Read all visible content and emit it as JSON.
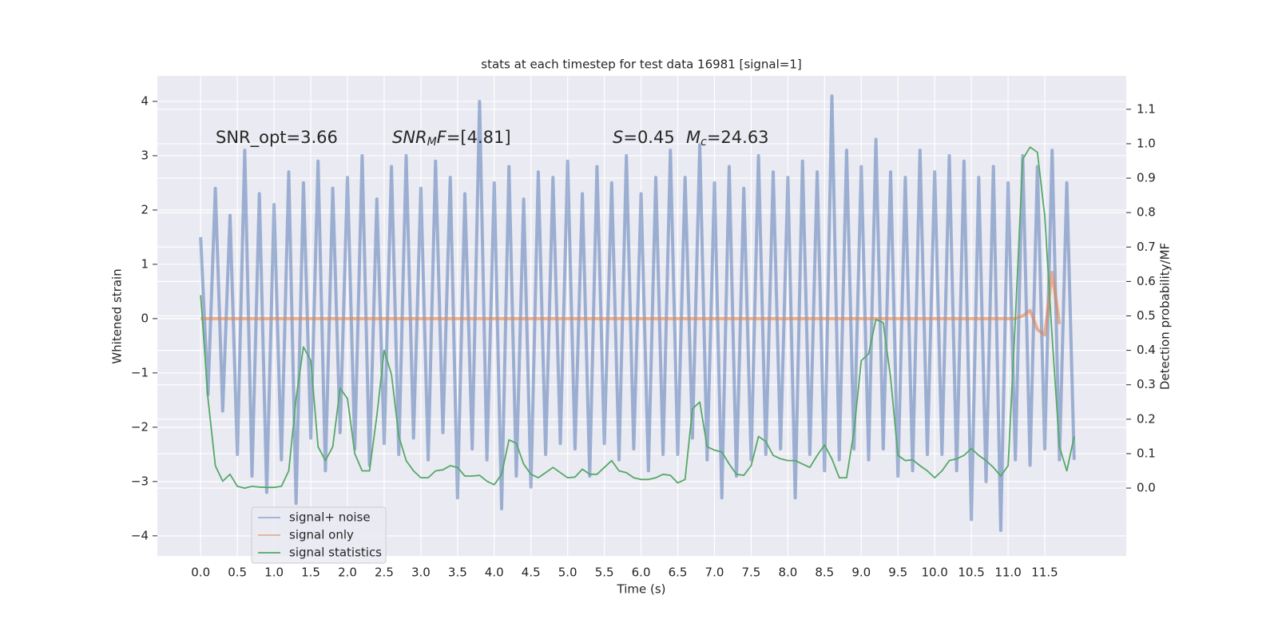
{
  "chart_data": {
    "type": "line",
    "title": "stats at each timestep for test data 16981 [signal=1]",
    "xlabel": "Time (s)",
    "ylabel": "Whitened strain",
    "y2label": "Detection probability/MF",
    "annotations": [
      [
        {
          "text": "SNR_opt=3.66",
          "italic": false,
          "sub": false
        }
      ],
      [
        {
          "text": "SNR",
          "italic": true,
          "sub": false
        },
        {
          "text": "M",
          "italic": true,
          "sub": true
        },
        {
          "text": "F",
          "italic": true,
          "sub": false
        },
        {
          "text": "=[4.81]",
          "italic": false,
          "sub": false
        }
      ],
      [
        {
          "text": "S",
          "italic": true,
          "sub": false
        },
        {
          "text": "=0.45",
          "italic": false,
          "sub": false
        }
      ],
      [
        {
          "text": "M",
          "italic": true,
          "sub": false
        },
        {
          "text": "c",
          "italic": true,
          "sub": true
        },
        {
          "text": "=24.63",
          "italic": false,
          "sub": false
        }
      ]
    ],
    "x": [
      0.0,
      0.1,
      0.2,
      0.3,
      0.4,
      0.5,
      0.6,
      0.7,
      0.8,
      0.9,
      1.0,
      1.1,
      1.2,
      1.3,
      1.4,
      1.5,
      1.6,
      1.7,
      1.8,
      1.9,
      2.0,
      2.1,
      2.2,
      2.3,
      2.4,
      2.5,
      2.6,
      2.7,
      2.8,
      2.9,
      3.0,
      3.1,
      3.2,
      3.3,
      3.4,
      3.5,
      3.6,
      3.7,
      3.8,
      3.9,
      4.0,
      4.1,
      4.2,
      4.3,
      4.4,
      4.5,
      4.6,
      4.7,
      4.8,
      4.9,
      5.0,
      5.1,
      5.2,
      5.3,
      5.4,
      5.5,
      5.6,
      5.7,
      5.8,
      5.9,
      6.0,
      6.1,
      6.2,
      6.3,
      6.4,
      6.5,
      6.6,
      6.7,
      6.8,
      6.9,
      7.0,
      7.1,
      7.2,
      7.3,
      7.4,
      7.5,
      7.6,
      7.7,
      7.8,
      7.9,
      8.0,
      8.1,
      8.2,
      8.3,
      8.4,
      8.5,
      8.6,
      8.7,
      8.8,
      8.9,
      9.0,
      9.1,
      9.2,
      9.3,
      9.4,
      9.5,
      9.6,
      9.7,
      9.8,
      9.9,
      10.0,
      10.1,
      10.2,
      10.3,
      10.4,
      10.5,
      10.6,
      10.7,
      10.8,
      10.9,
      11.0,
      11.1,
      11.2,
      11.3,
      11.4,
      11.5,
      11.6,
      11.7,
      11.8,
      11.9
    ],
    "series": [
      {
        "name": "signal+ noise",
        "color": "#4c72b0",
        "opacity": 0.5,
        "axis": "y",
        "values": [
          1.5,
          -1.4,
          2.4,
          -1.7,
          1.9,
          -2.5,
          3.1,
          -2.9,
          2.3,
          -3.2,
          2.1,
          -2.6,
          2.7,
          -3.4,
          2.5,
          -2.2,
          2.9,
          -2.8,
          2.4,
          -2.1,
          2.6,
          -2.4,
          3.0,
          -2.7,
          2.2,
          -2.3,
          2.8,
          -2.5,
          3.0,
          -2.2,
          2.4,
          -2.6,
          2.9,
          -2.1,
          2.6,
          -3.3,
          2.3,
          -2.4,
          4.0,
          -2.6,
          2.5,
          -3.5,
          2.8,
          -2.9,
          2.2,
          -3.1,
          2.7,
          -2.5,
          2.6,
          -2.3,
          2.9,
          -2.4,
          2.3,
          -2.9,
          2.8,
          -2.3,
          2.5,
          -2.6,
          3.0,
          -2.4,
          2.3,
          -2.8,
          2.6,
          -2.5,
          3.1,
          -2.5,
          2.6,
          -2.2,
          3.2,
          -2.6,
          2.5,
          -3.3,
          2.8,
          -2.9,
          2.4,
          -2.6,
          3.0,
          -2.5,
          2.7,
          -2.4,
          2.6,
          -3.3,
          2.9,
          -2.5,
          2.7,
          -2.8,
          4.1,
          -2.6,
          3.1,
          -2.4,
          2.8,
          -2.6,
          3.3,
          -2.4,
          2.7,
          -2.9,
          2.6,
          -2.8,
          3.1,
          -2.5,
          2.7,
          -2.5,
          3.0,
          -2.8,
          2.9,
          -3.7,
          2.6,
          -3.0,
          2.8,
          -3.9,
          2.5,
          -2.6,
          3.0,
          -2.7,
          2.8,
          -2.4,
          3.1,
          -2.6,
          2.5,
          -2.6
        ]
      },
      {
        "name": "signal only",
        "color": "#dd8452",
        "opacity": 0.6,
        "axis": "y",
        "values": [
          0,
          0,
          0,
          0,
          0,
          0,
          0,
          0,
          0,
          0,
          0,
          0,
          0,
          0,
          0,
          0,
          0,
          0,
          0,
          0,
          0,
          0,
          0,
          0,
          0,
          0,
          0,
          0,
          0,
          0,
          0,
          0,
          0,
          0,
          0,
          0,
          0,
          0,
          0,
          0,
          0,
          0,
          0,
          0,
          0,
          0,
          0,
          0,
          0,
          0,
          0,
          0,
          0,
          0,
          0,
          0,
          0,
          0,
          0,
          0,
          0,
          0,
          0,
          0,
          0,
          0,
          0,
          0,
          0,
          0,
          0,
          0,
          0,
          0,
          0,
          0,
          0,
          0,
          0,
          0,
          0,
          0,
          0,
          0,
          0,
          0,
          0,
          0,
          0,
          0,
          0,
          0,
          0,
          0,
          0,
          0,
          0,
          0,
          0,
          0,
          0,
          0,
          0,
          0,
          0,
          0,
          0,
          0,
          0,
          0,
          0,
          0,
          0.05,
          0.15,
          -0.2,
          -0.3,
          0.85,
          -0.1,
          null,
          null
        ]
      },
      {
        "name": "signal statistics",
        "color": "#55a868",
        "opacity": 1,
        "axis": "y2",
        "values": [
          0.56,
          0.26,
          0.065,
          0.02,
          0.04,
          0.005,
          0.0,
          0.005,
          0.003,
          0.002,
          0.002,
          0.005,
          0.05,
          0.26,
          0.41,
          0.37,
          0.12,
          0.08,
          0.12,
          0.29,
          0.26,
          0.1,
          0.05,
          0.05,
          0.21,
          0.4,
          0.33,
          0.15,
          0.08,
          0.05,
          0.03,
          0.03,
          0.05,
          0.053,
          0.065,
          0.06,
          0.035,
          0.035,
          0.037,
          0.02,
          0.01,
          0.04,
          0.14,
          0.13,
          0.07,
          0.04,
          0.03,
          0.045,
          0.06,
          0.045,
          0.03,
          0.032,
          0.055,
          0.04,
          0.04,
          0.06,
          0.08,
          0.05,
          0.045,
          0.03,
          0.025,
          0.025,
          0.03,
          0.04,
          0.037,
          0.015,
          0.025,
          0.23,
          0.25,
          0.12,
          0.11,
          0.105,
          0.07,
          0.04,
          0.037,
          0.065,
          0.15,
          0.135,
          0.095,
          0.085,
          0.08,
          0.08,
          0.07,
          0.06,
          0.095,
          0.125,
          0.085,
          0.03,
          0.03,
          0.165,
          0.37,
          0.39,
          0.49,
          0.48,
          0.32,
          0.095,
          0.08,
          0.082,
          0.065,
          0.05,
          0.03,
          0.05,
          0.08,
          0.085,
          0.095,
          0.115,
          0.095,
          0.08,
          0.06,
          0.035,
          0.065,
          0.49,
          0.955,
          0.99,
          0.975,
          0.79,
          0.44,
          0.12,
          0.05,
          0.15
        ]
      }
    ],
    "xlim": [
      -0.59,
      12.61
    ],
    "ylim": [
      -4.37,
      4.47
    ],
    "y2lim": [
      -0.197,
      1.197
    ],
    "xticks": [
      {
        "value": 0,
        "label": "0.0"
      },
      0.5,
      {
        "value": 1,
        "label": "1.0"
      },
      1.5,
      {
        "value": 2,
        "label": "2.0"
      },
      2.5,
      {
        "value": 3,
        "label": "3.0"
      },
      3.5,
      {
        "value": 4,
        "label": "4.0"
      },
      4.5,
      {
        "value": 5,
        "label": "5.0"
      },
      5.5,
      {
        "value": 6,
        "label": "6.0"
      },
      6.5,
      {
        "value": 7,
        "label": "7.0"
      },
      7.5,
      {
        "value": 8,
        "label": "8.0"
      },
      8.5,
      {
        "value": 9,
        "label": "9.0"
      },
      9.5,
      {
        "value": 10,
        "label": "10.0"
      },
      10.5,
      {
        "value": 11,
        "label": "11.0"
      },
      11.5
    ],
    "yticks": [
      {
        "value": -4,
        "label": "−4"
      },
      {
        "value": -3,
        "label": "−3"
      },
      {
        "value": -2,
        "label": "−2"
      },
      {
        "value": -1,
        "label": "−1"
      },
      0,
      1,
      2,
      3,
      4
    ],
    "y2ticks": [
      {
        "value": 0,
        "label": "0.0"
      },
      0.1,
      0.2,
      0.3,
      0.4,
      0.5,
      0.6,
      0.7,
      0.8,
      0.9,
      {
        "value": 1,
        "label": "1.0"
      },
      1.1
    ],
    "grid": true,
    "legend": "lower left",
    "background": "#eaeaf2"
  }
}
